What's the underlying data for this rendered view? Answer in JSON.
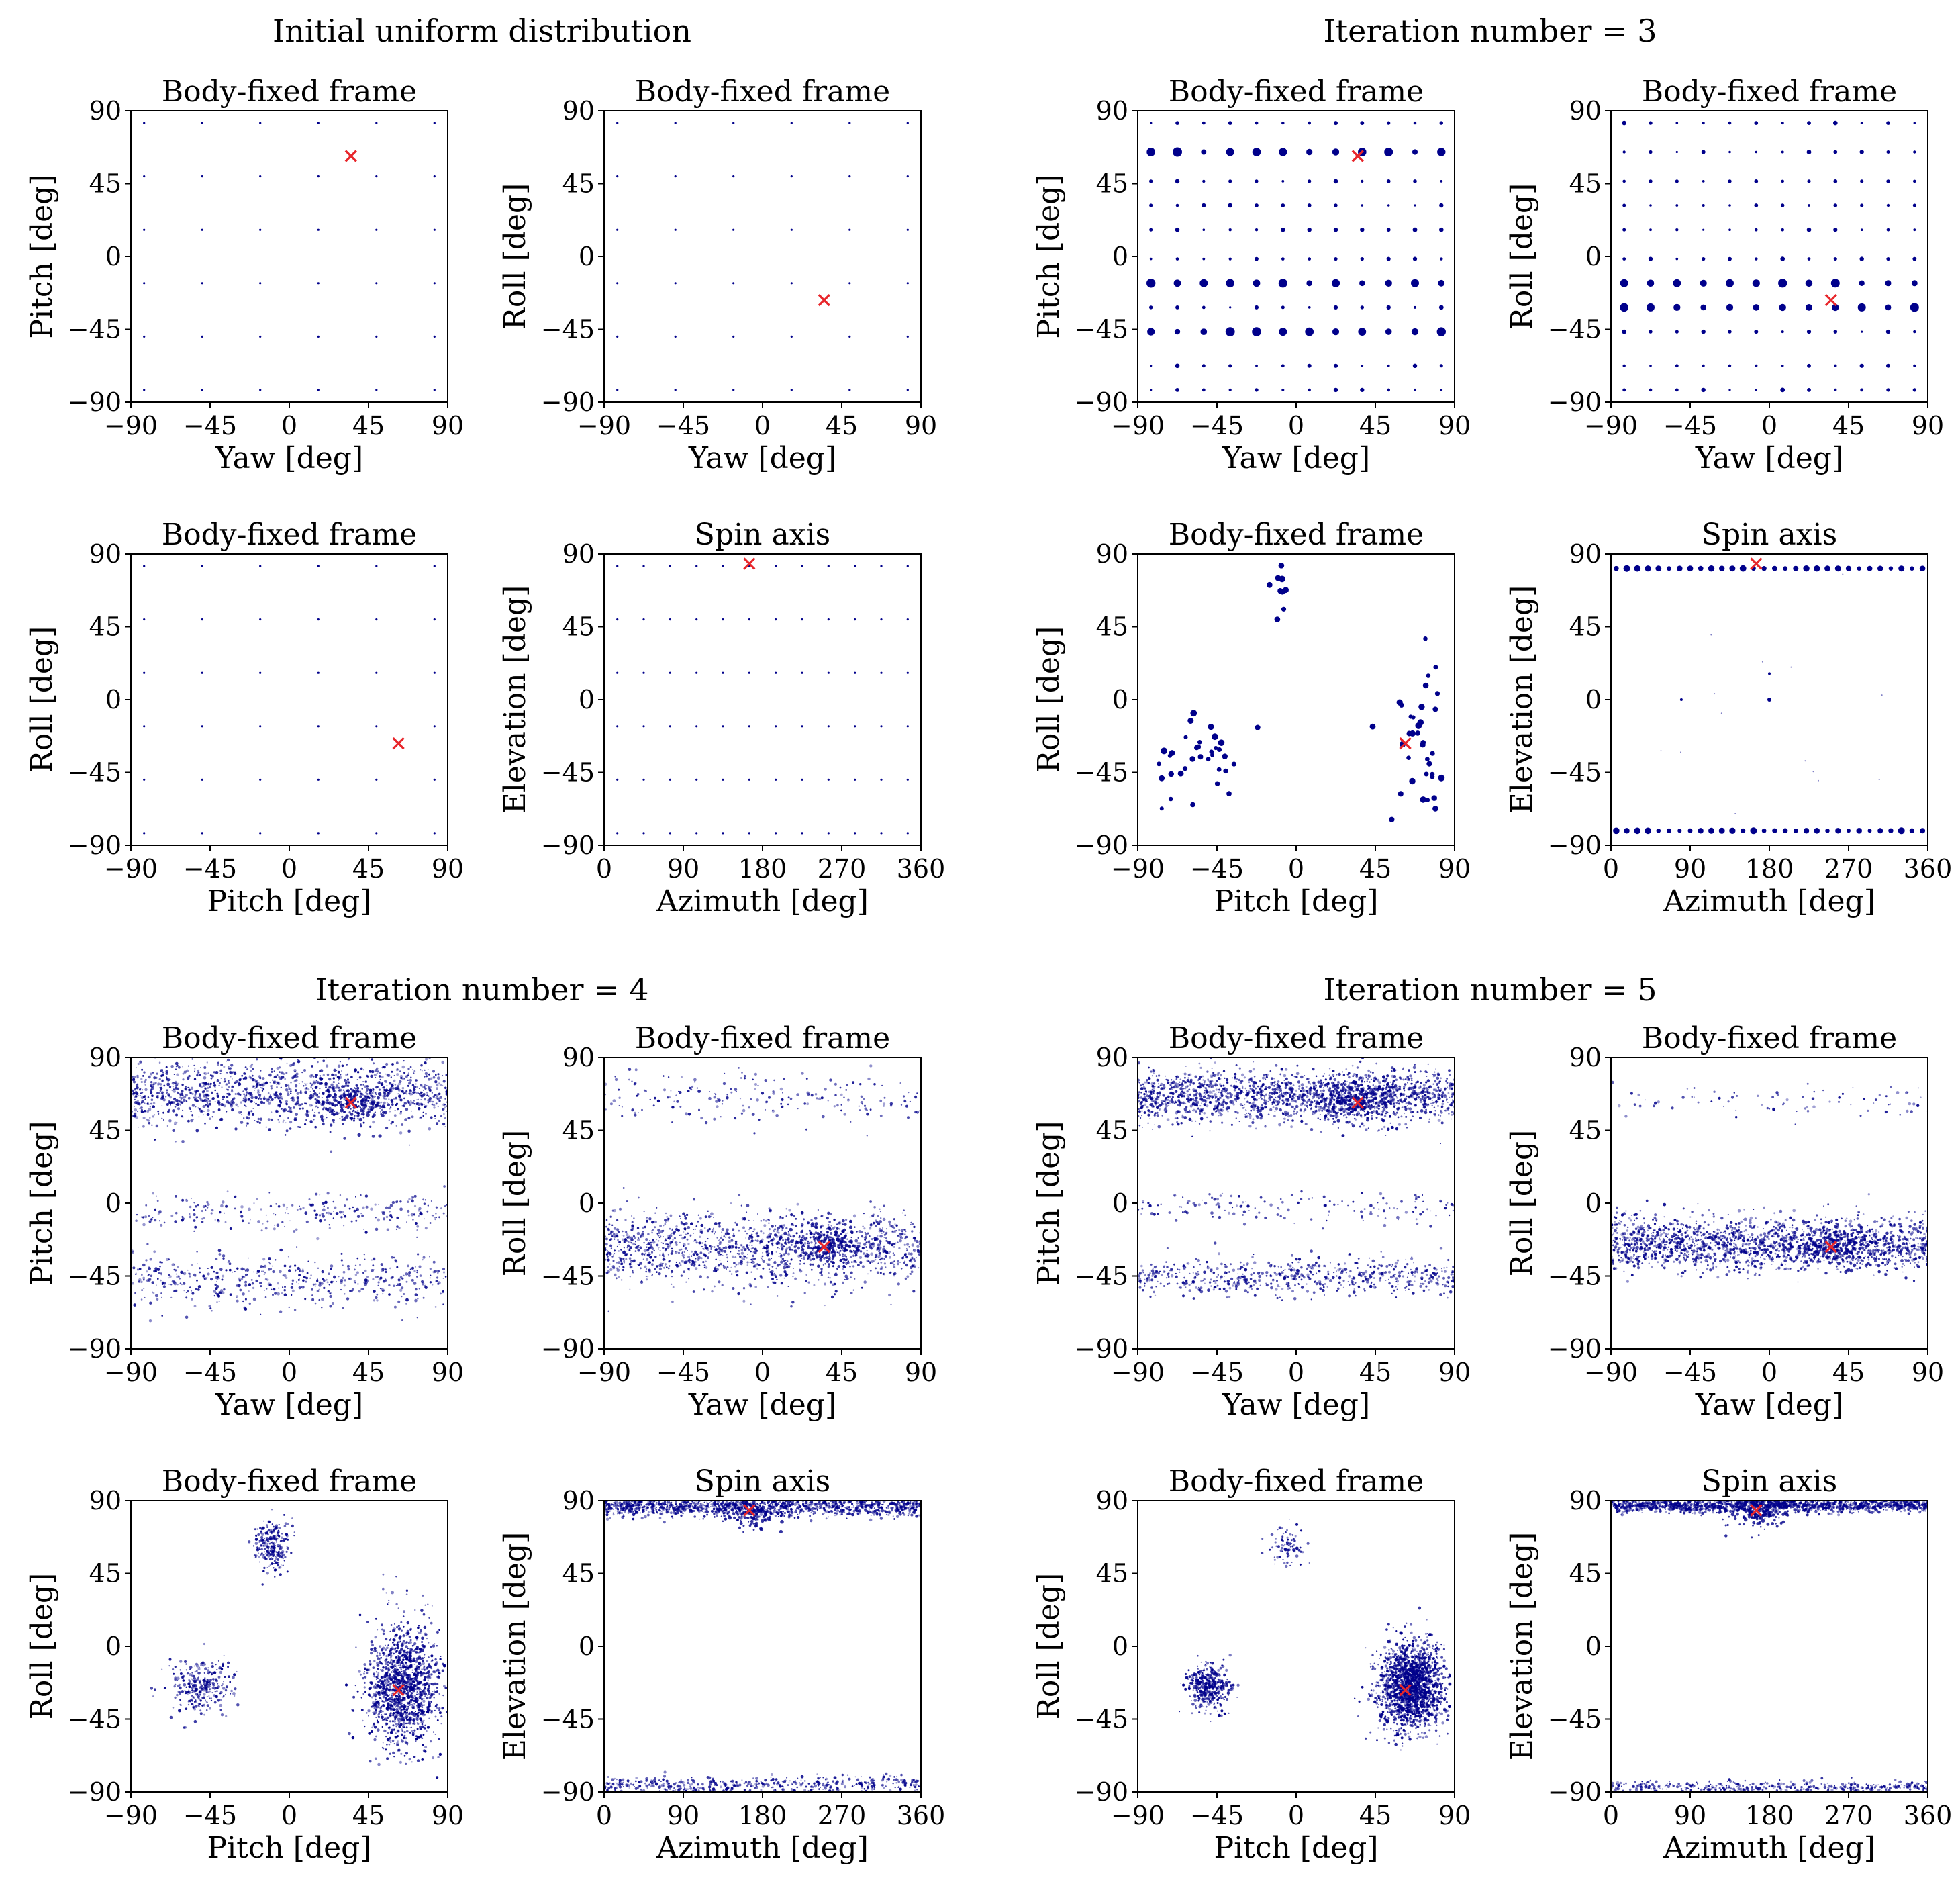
{
  "figure": {
    "colors": {
      "points": "#00008b",
      "marker": "#e8262b",
      "frame": "#000000"
    },
    "groups": [
      {
        "title": "Initial uniform distribution",
        "iteration": "initial"
      },
      {
        "title": "Iteration number = 3",
        "iteration": "3"
      },
      {
        "title": "Iteration number = 4",
        "iteration": "4"
      },
      {
        "title": "Iteration number = 5",
        "iteration": "5"
      }
    ]
  },
  "chart_data": [
    {
      "type": "scatter",
      "group": 0,
      "panel": "yaw-pitch",
      "title": "Body-fixed frame",
      "xlabel": "Yaw [deg]",
      "ylabel": "Pitch [deg]",
      "xlim": [
        -90,
        90
      ],
      "ylim": [
        -90,
        90
      ],
      "xticks": [
        -90,
        -45,
        0,
        45,
        90
      ],
      "yticks": [
        -90,
        -45,
        0,
        45,
        90
      ],
      "tick_labels": [
        "−90",
        "−45",
        "0",
        "45",
        "90"
      ],
      "truth": [
        35,
        62
      ],
      "distribution": "grid",
      "grid_x": [
        -82.5,
        -49.5,
        -16.5,
        16.5,
        49.5,
        82.5
      ],
      "grid_y": [
        -82.5,
        -49.5,
        -16.5,
        16.5,
        49.5,
        82.5
      ]
    },
    {
      "type": "scatter",
      "group": 0,
      "panel": "yaw-roll",
      "title": "Body-fixed frame",
      "xlabel": "Yaw [deg]",
      "ylabel": "Roll [deg]",
      "xlim": [
        -90,
        90
      ],
      "ylim": [
        -90,
        90
      ],
      "xticks": [
        -90,
        -45,
        0,
        45,
        90
      ],
      "yticks": [
        -90,
        -45,
        0,
        45,
        90
      ],
      "tick_labels": [
        "−90",
        "−45",
        "0",
        "45",
        "90"
      ],
      "truth": [
        35,
        -27
      ],
      "distribution": "grid",
      "grid_x": [
        -82.5,
        -49.5,
        -16.5,
        16.5,
        49.5,
        82.5
      ],
      "grid_y": [
        -82.5,
        -49.5,
        -16.5,
        16.5,
        49.5,
        82.5
      ]
    },
    {
      "type": "scatter",
      "group": 0,
      "panel": "pitch-roll",
      "title": "Body-fixed frame",
      "xlabel": "Pitch [deg]",
      "ylabel": "Roll [deg]",
      "xlim": [
        -90,
        90
      ],
      "ylim": [
        -90,
        90
      ],
      "xticks": [
        -90,
        -45,
        0,
        45,
        90
      ],
      "yticks": [
        -90,
        -45,
        0,
        45,
        90
      ],
      "tick_labels": [
        "−90",
        "−45",
        "0",
        "45",
        "90"
      ],
      "truth": [
        62,
        -27
      ],
      "distribution": "grid",
      "grid_x": [
        -82.5,
        -49.5,
        -16.5,
        16.5,
        49.5,
        82.5
      ],
      "grid_y": [
        -82.5,
        -49.5,
        -16.5,
        16.5,
        49.5,
        82.5
      ]
    },
    {
      "type": "scatter",
      "group": 0,
      "panel": "azimuth-elevation",
      "title": "Spin axis",
      "xlabel": "Azimuth [deg]",
      "ylabel": "Elevation [deg]",
      "xlim": [
        0,
        360
      ],
      "ylim": [
        -90,
        90
      ],
      "xticks": [
        0,
        90,
        180,
        270,
        360
      ],
      "yticks": [
        -90,
        -45,
        0,
        45,
        90
      ],
      "tick_labels": [
        "0",
        "90",
        "180",
        "270",
        "360"
      ],
      "ytick_labels": [
        "−90",
        "−45",
        "0",
        "45",
        "90"
      ],
      "truth": [
        165,
        84
      ],
      "distribution": "grid",
      "grid_x": [
        15,
        45,
        75,
        105,
        135,
        165,
        195,
        225,
        255,
        285,
        315,
        345
      ],
      "grid_y": [
        -82.5,
        -49.5,
        -16.5,
        16.5,
        49.5,
        82.5
      ]
    },
    {
      "type": "scatter",
      "group": 1,
      "panel": "yaw-pitch",
      "title": "Body-fixed frame",
      "xlabel": "Yaw [deg]",
      "ylabel": "Pitch [deg]",
      "xlim": [
        -90,
        90
      ],
      "ylim": [
        -90,
        90
      ],
      "xticks": [
        -90,
        -45,
        0,
        45,
        90
      ],
      "yticks": [
        -90,
        -45,
        0,
        45,
        90
      ],
      "tick_labels": [
        "−90",
        "−45",
        "0",
        "45",
        "90"
      ],
      "truth": [
        35,
        62
      ],
      "distribution": "grid",
      "grid_x": [
        -82.5,
        -67.5,
        -52.5,
        -37.5,
        -22.5,
        -7.5,
        7.5,
        22.5,
        37.5,
        52.5,
        67.5,
        82.5
      ],
      "grid_y": [
        -82.5,
        -67.5,
        -46.5,
        -31.5,
        -16.5,
        -1.5,
        16.5,
        31.5,
        46.5,
        64.5,
        82.5
      ],
      "heavy_y": [
        64.5,
        -46.5,
        -16.5
      ]
    },
    {
      "type": "scatter",
      "group": 1,
      "panel": "yaw-roll",
      "title": "Body-fixed frame",
      "xlabel": "Yaw [deg]",
      "ylabel": "Roll [deg]",
      "xlim": [
        -90,
        90
      ],
      "ylim": [
        -90,
        90
      ],
      "xticks": [
        -90,
        -45,
        0,
        45,
        90
      ],
      "yticks": [
        -90,
        -45,
        0,
        45,
        90
      ],
      "tick_labels": [
        "−90",
        "−45",
        "0",
        "45",
        "90"
      ],
      "truth": [
        35,
        -27
      ],
      "distribution": "grid",
      "grid_x": [
        -82.5,
        -67.5,
        -52.5,
        -37.5,
        -22.5,
        -7.5,
        7.5,
        22.5,
        37.5,
        52.5,
        67.5,
        82.5
      ],
      "grid_y": [
        -82.5,
        -67.5,
        -46.5,
        -31.5,
        -16.5,
        -1.5,
        16.5,
        31.5,
        46.5,
        64.5,
        82.5
      ],
      "heavy_y": [
        -31.5,
        -16.5
      ]
    },
    {
      "type": "scatter",
      "group": 1,
      "panel": "pitch-roll",
      "title": "Body-fixed frame",
      "xlabel": "Pitch [deg]",
      "ylabel": "Roll [deg]",
      "xlim": [
        -90,
        90
      ],
      "ylim": [
        -90,
        90
      ],
      "xticks": [
        -90,
        -45,
        0,
        45,
        90
      ],
      "yticks": [
        -90,
        -45,
        0,
        45,
        90
      ],
      "tick_labels": [
        "−90",
        "−45",
        "0",
        "45",
        "90"
      ],
      "truth": [
        62,
        -27
      ],
      "distribution": "clusters",
      "clusters": [
        [
          -50,
          -30,
          12,
          12,
          28
        ],
        [
          -8,
          68,
          6,
          10,
          10
        ],
        [
          65,
          -25,
          10,
          28,
          28
        ],
        [
          80,
          -55,
          5,
          15,
          8
        ],
        [
          -70,
          -60,
          8,
          10,
          6
        ]
      ]
    },
    {
      "type": "scatter",
      "group": 1,
      "panel": "azimuth-elevation",
      "title": "Spin axis",
      "xlabel": "Azimuth [deg]",
      "ylabel": "Elevation [deg]",
      "xlim": [
        0,
        360
      ],
      "ylim": [
        -90,
        90
      ],
      "xticks": [
        0,
        90,
        180,
        270,
        360
      ],
      "yticks": [
        -90,
        -45,
        0,
        45,
        90
      ],
      "tick_labels": [
        "0",
        "90",
        "180",
        "270",
        "360"
      ],
      "ytick_labels": [
        "−90",
        "−45",
        "0",
        "45",
        "90"
      ],
      "truth": [
        165,
        84
      ],
      "distribution": "rows",
      "rows": [
        [
          81,
          30
        ],
        [
          -81,
          30
        ]
      ]
    },
    {
      "type": "scatter",
      "group": 2,
      "panel": "yaw-pitch",
      "title": "Body-fixed frame",
      "xlabel": "Yaw [deg]",
      "ylabel": "Pitch [deg]",
      "xlim": [
        -90,
        90
      ],
      "ylim": [
        -90,
        90
      ],
      "xticks": [
        -90,
        -45,
        0,
        45,
        90
      ],
      "yticks": [
        -90,
        -45,
        0,
        45,
        90
      ],
      "tick_labels": [
        "−90",
        "−45",
        "0",
        "45",
        "90"
      ],
      "truth": [
        35,
        62
      ],
      "distribution": "bands",
      "bands": [
        [
          68,
          10,
          1400
        ],
        [
          -5,
          6,
          250
        ],
        [
          -48,
          8,
          500
        ]
      ]
    },
    {
      "type": "scatter",
      "group": 2,
      "panel": "yaw-roll",
      "title": "Body-fixed frame",
      "xlabel": "Yaw [deg]",
      "ylabel": "Roll [deg]",
      "xlim": [
        -90,
        90
      ],
      "ylim": [
        -90,
        90
      ],
      "xticks": [
        -90,
        -45,
        0,
        45,
        90
      ],
      "yticks": [
        -90,
        -45,
        0,
        45,
        90
      ],
      "tick_labels": [
        "−90",
        "−45",
        "0",
        "45",
        "90"
      ],
      "truth": [
        35,
        -27
      ],
      "distribution": "bands",
      "bands": [
        [
          -27,
          11,
          1400
        ],
        [
          65,
          8,
          200
        ]
      ]
    },
    {
      "type": "scatter",
      "group": 2,
      "panel": "pitch-roll",
      "title": "Body-fixed frame",
      "xlabel": "Pitch [deg]",
      "ylabel": "Roll [deg]",
      "xlim": [
        -90,
        90
      ],
      "ylim": [
        -90,
        90
      ],
      "xticks": [
        -90,
        -45,
        0,
        45,
        90
      ],
      "yticks": [
        -90,
        -45,
        0,
        45,
        90
      ],
      "tick_labels": [
        "−90",
        "−45",
        "0",
        "45",
        "90"
      ],
      "truth": [
        62,
        -27
      ],
      "distribution": "clusters",
      "clusters": [
        [
          -50,
          -25,
          9,
          9,
          300
        ],
        [
          -10,
          62,
          5,
          8,
          250
        ],
        [
          65,
          -25,
          10,
          18,
          1400
        ]
      ]
    },
    {
      "type": "scatter",
      "group": 2,
      "panel": "azimuth-elevation",
      "title": "Spin axis",
      "xlabel": "Azimuth [deg]",
      "ylabel": "Elevation [deg]",
      "xlim": [
        0,
        360
      ],
      "ylim": [
        -90,
        90
      ],
      "xticks": [
        0,
        90,
        180,
        270,
        360
      ],
      "yticks": [
        -90,
        -45,
        0,
        45,
        90
      ],
      "tick_labels": [
        "0",
        "90",
        "180",
        "270",
        "360"
      ],
      "ytick_labels": [
        "−90",
        "−45",
        "0",
        "45",
        "90"
      ],
      "truth": [
        165,
        84
      ],
      "distribution": "bands",
      "bands": [
        [
          86,
          3,
          1300
        ],
        [
          -86,
          3,
          500
        ]
      ]
    },
    {
      "type": "scatter",
      "group": 3,
      "panel": "yaw-pitch",
      "title": "Body-fixed frame",
      "xlabel": "Yaw [deg]",
      "ylabel": "Pitch [deg]",
      "xlim": [
        -90,
        90
      ],
      "ylim": [
        -90,
        90
      ],
      "xticks": [
        -90,
        -45,
        0,
        45,
        90
      ],
      "yticks": [
        -90,
        -45,
        0,
        45,
        90
      ],
      "tick_labels": [
        "−90",
        "−45",
        "0",
        "45",
        "90"
      ],
      "truth": [
        35,
        62
      ],
      "distribution": "bands",
      "bands": [
        [
          66,
          8,
          1800
        ],
        [
          -2,
          5,
          150
        ],
        [
          -45,
          6,
          600
        ]
      ]
    },
    {
      "type": "scatter",
      "group": 3,
      "panel": "yaw-roll",
      "title": "Body-fixed frame",
      "xlabel": "Yaw [deg]",
      "ylabel": "Roll [deg]",
      "xlim": [
        -90,
        90
      ],
      "ylim": [
        -90,
        90
      ],
      "xticks": [
        -90,
        -45,
        0,
        45,
        90
      ],
      "yticks": [
        -90,
        -45,
        0,
        45,
        90
      ],
      "tick_labels": [
        "−90",
        "−45",
        "0",
        "45",
        "90"
      ],
      "truth": [
        35,
        -27
      ],
      "distribution": "bands",
      "bands": [
        [
          -25,
          8,
          1800
        ],
        [
          62,
          5,
          80
        ]
      ]
    },
    {
      "type": "scatter",
      "group": 3,
      "panel": "pitch-roll",
      "title": "Body-fixed frame",
      "xlabel": "Pitch [deg]",
      "ylabel": "Roll [deg]",
      "xlim": [
        -90,
        90
      ],
      "ylim": [
        -90,
        90
      ],
      "xticks": [
        -90,
        -45,
        0,
        45,
        90
      ],
      "yticks": [
        -90,
        -45,
        0,
        45,
        90
      ],
      "tick_labels": [
        "−90",
        "−45",
        "0",
        "45",
        "90"
      ],
      "truth": [
        62,
        -27
      ],
      "distribution": "clusters",
      "clusters": [
        [
          -50,
          -25,
          6,
          7,
          400
        ],
        [
          -5,
          62,
          5,
          7,
          80
        ],
        [
          65,
          -25,
          9,
          13,
          1800
        ]
      ]
    },
    {
      "type": "scatter",
      "group": 3,
      "panel": "azimuth-elevation",
      "title": "Spin axis",
      "xlabel": "Azimuth [deg]",
      "ylabel": "Elevation [deg]",
      "xlim": [
        0,
        360
      ],
      "ylim": [
        -90,
        90
      ],
      "xticks": [
        0,
        90,
        180,
        270,
        360
      ],
      "yticks": [
        -90,
        -45,
        0,
        45,
        90
      ],
      "tick_labels": [
        "0",
        "90",
        "180",
        "270",
        "360"
      ],
      "ytick_labels": [
        "−90",
        "−45",
        "0",
        "45",
        "90"
      ],
      "truth": [
        165,
        84
      ],
      "distribution": "bands",
      "bands": [
        [
          87,
          2,
          1500
        ],
        [
          -87,
          2,
          400
        ]
      ]
    }
  ]
}
